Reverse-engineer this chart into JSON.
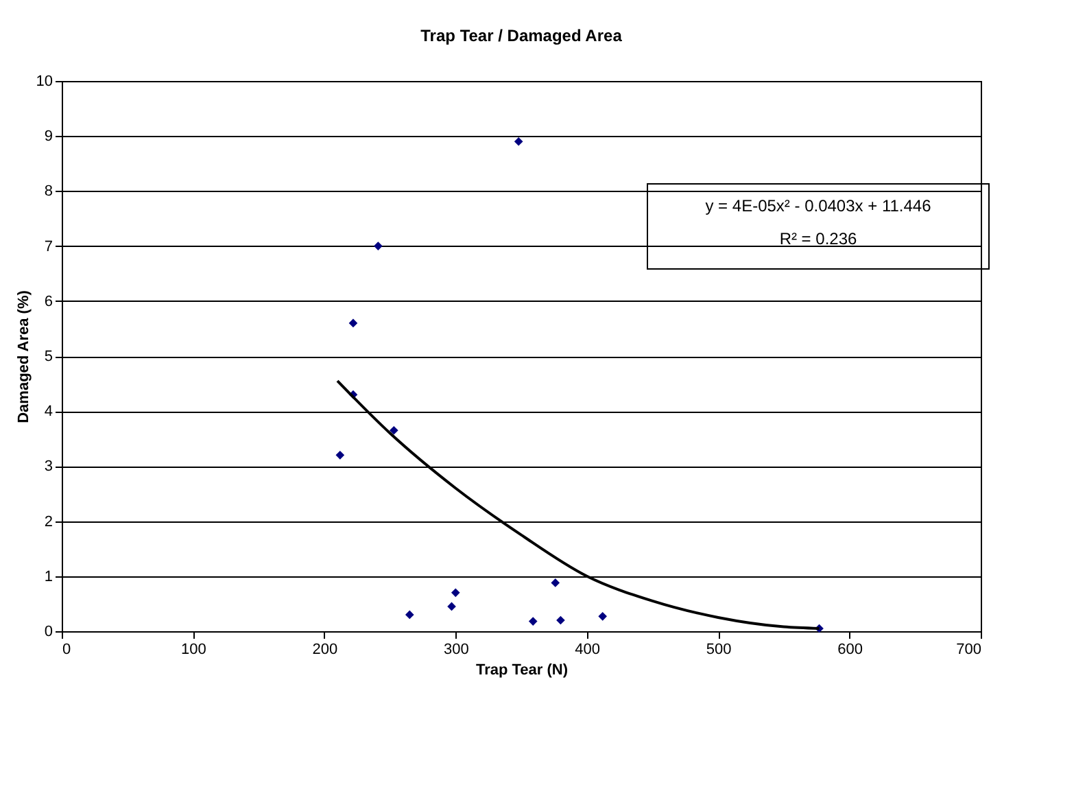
{
  "chart_data": {
    "type": "scatter",
    "title": "Trap Tear  /  Damaged Area",
    "xlabel": "Trap Tear  (N)",
    "ylabel": "Damaged Area (%)",
    "xlim": [
      0,
      700
    ],
    "xticks": [
      0,
      100,
      200,
      300,
      400,
      500,
      600,
      700
    ],
    "ylim": [
      0,
      10
    ],
    "yticks": [
      0,
      1,
      2,
      3,
      4,
      5,
      6,
      7,
      8,
      9,
      10
    ],
    "grid": "y",
    "marker": "diamond",
    "annotations": [
      "y = 4E-05x² - 0.0403x + 11.446",
      "R² = 0.236"
    ],
    "series": [
      {
        "type": "scatter",
        "color": "#000080",
        "x": [
          212,
          222,
          222,
          241,
          253,
          265,
          297,
          300,
          348,
          359,
          376,
          380,
          412,
          577
        ],
        "values": [
          3.2,
          5.6,
          4.3,
          7.0,
          3.65,
          0.3,
          0.45,
          0.7,
          8.9,
          0.18,
          0.88,
          0.2,
          0.27,
          0.05
        ]
      },
      {
        "type": "line",
        "color": "#000000",
        "line_style": "solid",
        "marker": "none",
        "x": [
          210,
          250,
          300,
          350,
          400,
          450,
          500,
          550,
          577
        ],
        "values": [
          4.55,
          3.6,
          2.6,
          1.75,
          1.0,
          0.55,
          0.25,
          0.08,
          0.05
        ]
      }
    ]
  }
}
